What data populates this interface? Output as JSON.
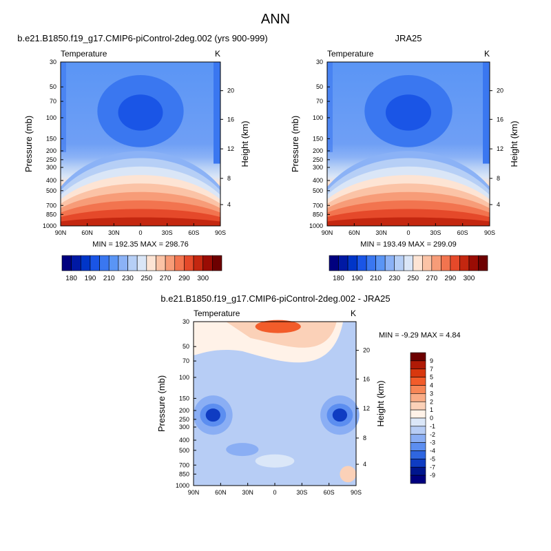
{
  "page": {
    "title": "ANN"
  },
  "colors": {
    "axis": "#000000",
    "background": "#ffffff"
  },
  "chart_data": [
    {
      "id": "model",
      "type": "heatmap",
      "title": "b.e21.B1850.f19_g17.CMIP6-piControl-2deg.002 (yrs 900-999)",
      "subtitle_left": "Temperature",
      "subtitle_right": "K",
      "xlabel": "",
      "ylabel": "Pressure (mb)",
      "ylabel_right": "Height (km)",
      "x_ticks": [
        "90N",
        "60N",
        "30N",
        "0",
        "30S",
        "60S",
        "90S"
      ],
      "y_ticks": [
        "30",
        "50",
        "70",
        "100",
        "150",
        "200",
        "250",
        "300",
        "400",
        "500",
        "700",
        "850",
        "1000"
      ],
      "y_ticks_right": [
        "20",
        "16",
        "12",
        "8",
        "4"
      ],
      "stats": "MIN = 192.35  MAX = 298.76",
      "min": 192.35,
      "max": 298.76,
      "colorbar": {
        "levels": [
          "180",
          "190",
          "210",
          "230",
          "250",
          "270",
          "290",
          "300"
        ],
        "colors": [
          "#00007f",
          "#0019a4",
          "#0035c8",
          "#1a55e6",
          "#3a77f0",
          "#5a95f5",
          "#8bb2f6",
          "#b6cff6",
          "#dae6f7",
          "#fde4d4",
          "#fbc3a6",
          "#f79c78",
          "#f2744f",
          "#e5492a",
          "#c42710",
          "#9a0c04",
          "#6d0000"
        ]
      }
    },
    {
      "id": "obs",
      "type": "heatmap",
      "title": "JRA25",
      "subtitle_left": "Temperature",
      "subtitle_right": "K",
      "xlabel": "",
      "ylabel": "Pressure (mb)",
      "ylabel_right": "Height (km)",
      "x_ticks": [
        "90N",
        "60N",
        "30N",
        "0",
        "30S",
        "60S",
        "90S"
      ],
      "y_ticks": [
        "30",
        "50",
        "70",
        "100",
        "150",
        "200",
        "250",
        "300",
        "400",
        "500",
        "700",
        "850",
        "1000"
      ],
      "y_ticks_right": [
        "20",
        "16",
        "12",
        "8",
        "4"
      ],
      "stats": "MIN = 193.49  MAX = 299.09",
      "min": 193.49,
      "max": 299.09,
      "colorbar": {
        "levels": [
          "180",
          "190",
          "210",
          "230",
          "250",
          "270",
          "290",
          "300"
        ],
        "colors": [
          "#00007f",
          "#0019a4",
          "#0035c8",
          "#1a55e6",
          "#3a77f0",
          "#5a95f5",
          "#8bb2f6",
          "#b6cff6",
          "#dae6f7",
          "#fde4d4",
          "#fbc3a6",
          "#f79c78",
          "#f2744f",
          "#e5492a",
          "#c42710",
          "#9a0c04",
          "#6d0000"
        ]
      }
    },
    {
      "id": "diff",
      "type": "heatmap",
      "title": "b.e21.B1850.f19_g17.CMIP6-piControl-2deg.002 - JRA25",
      "subtitle_left": "Temperature",
      "subtitle_right": "K",
      "xlabel": "",
      "ylabel": "Pressure (mb)",
      "ylabel_right": "Height (km)",
      "x_ticks": [
        "90N",
        "60N",
        "30N",
        "0",
        "30S",
        "60S",
        "90S"
      ],
      "y_ticks": [
        "30",
        "50",
        "70",
        "100",
        "150",
        "200",
        "250",
        "300",
        "400",
        "500",
        "700",
        "850",
        "1000"
      ],
      "y_ticks_right": [
        "20",
        "16",
        "12",
        "8",
        "4"
      ],
      "stats": "MIN =  -9.29  MAX =   4.84",
      "min": -9.29,
      "max": 4.84,
      "colorbar": {
        "levels": [
          "9",
          "7",
          "5",
          "4",
          "3",
          "2",
          "1",
          "0",
          "-1",
          "-2",
          "-3",
          "-4",
          "-5",
          "-7",
          "-9"
        ],
        "colors": [
          "#6d0000",
          "#b01a06",
          "#d8380f",
          "#f25c2a",
          "#f78656",
          "#f9ac86",
          "#fbd1b8",
          "#fff2e8",
          "#dbe7f8",
          "#b7cdf5",
          "#8aaef4",
          "#5c8ef0",
          "#2f66e0",
          "#0f3cc2",
          "#00168e",
          "#00007f"
        ]
      }
    }
  ]
}
